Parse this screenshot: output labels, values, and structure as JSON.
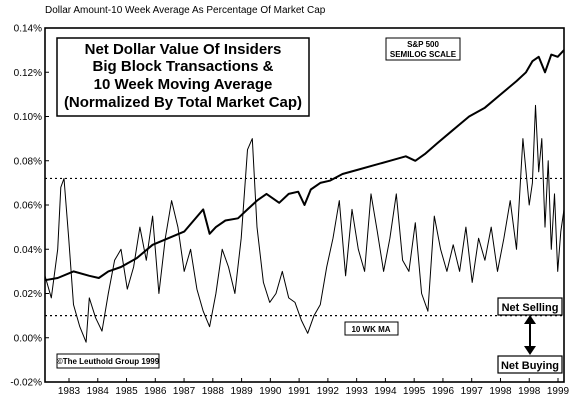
{
  "chart_data": {
    "type": "line",
    "ylabel": "Dollar Amount-10 Week Average As Percentage Of Market Cap",
    "title_lines": [
      "Net Dollar Value Of Insiders",
      "Big Block Transactions &",
      "10 Week Moving Average",
      "(Normalized By Total Market Cap)"
    ],
    "ylim": [
      -0.02,
      0.14
    ],
    "xlim": [
      1982.6,
      1999.0
    ],
    "y_ticks": [
      0.14,
      0.12,
      0.1,
      0.08,
      0.06,
      0.04,
      0.02,
      0.0,
      -0.02
    ],
    "y_tick_labels": [
      "0.14%",
      "0.12%",
      "0.10%",
      "0.08%",
      "0.06%",
      "0.04%",
      "0.02%",
      "0.00%",
      "-0.02%"
    ],
    "x_tick_labels": [
      "1983",
      "1984",
      "1985",
      "1986",
      "1987",
      "1988",
      "1989",
      "1990",
      "1991",
      "1992",
      "1993",
      "1994",
      "1995",
      "1996",
      "1997",
      "1998",
      "1998",
      "1999"
    ],
    "reference_lines": [
      0.072,
      0.01
    ],
    "series": [
      {
        "name": "10 WK MA",
        "x": [
          1982.6,
          1982.8,
          1983.0,
          1983.1,
          1983.2,
          1983.35,
          1983.5,
          1983.7,
          1983.9,
          1984.0,
          1984.2,
          1984.4,
          1984.6,
          1984.8,
          1985.0,
          1985.2,
          1985.4,
          1985.6,
          1985.8,
          1986.0,
          1986.2,
          1986.4,
          1986.6,
          1986.8,
          1987.0,
          1987.2,
          1987.4,
          1987.6,
          1987.8,
          1988.0,
          1988.2,
          1988.4,
          1988.6,
          1988.8,
          1989.0,
          1989.15,
          1989.3,
          1989.5,
          1989.7,
          1989.9,
          1990.1,
          1990.3,
          1990.5,
          1990.7,
          1990.9,
          1991.1,
          1991.3,
          1991.5,
          1991.7,
          1991.9,
          1992.1,
          1992.3,
          1992.5,
          1992.7,
          1992.9,
          1993.1,
          1993.3,
          1993.5,
          1993.7,
          1993.9,
          1994.1,
          1994.3,
          1994.5,
          1994.7,
          1994.9,
          1995.1,
          1995.3,
          1995.5,
          1995.7,
          1995.9,
          1996.1,
          1996.3,
          1996.5,
          1996.7,
          1996.9,
          1997.1,
          1997.3,
          1997.5,
          1997.7,
          1997.9,
          1998.0,
          1998.1,
          1998.2,
          1998.3,
          1998.4,
          1998.5,
          1998.6,
          1998.7,
          1998.8,
          1998.9,
          1999.0
        ],
        "values": [
          0.028,
          0.018,
          0.04,
          0.068,
          0.072,
          0.045,
          0.015,
          0.005,
          -0.002,
          0.018,
          0.009,
          0.003,
          0.02,
          0.035,
          0.04,
          0.022,
          0.032,
          0.05,
          0.035,
          0.055,
          0.02,
          0.045,
          0.062,
          0.05,
          0.03,
          0.04,
          0.022,
          0.012,
          0.005,
          0.02,
          0.04,
          0.032,
          0.02,
          0.045,
          0.085,
          0.09,
          0.05,
          0.025,
          0.016,
          0.02,
          0.03,
          0.018,
          0.016,
          0.008,
          0.002,
          0.01,
          0.015,
          0.032,
          0.045,
          0.062,
          0.028,
          0.058,
          0.04,
          0.03,
          0.065,
          0.048,
          0.03,
          0.045,
          0.065,
          0.035,
          0.03,
          0.052,
          0.02,
          0.012,
          0.055,
          0.04,
          0.03,
          0.042,
          0.03,
          0.05,
          0.025,
          0.045,
          0.035,
          0.05,
          0.03,
          0.045,
          0.062,
          0.04,
          0.09,
          0.06,
          0.07,
          0.105,
          0.075,
          0.09,
          0.05,
          0.08,
          0.04,
          0.065,
          0.03,
          0.048,
          0.058
        ]
      },
      {
        "name": "S&P 500 SEMILOG SCALE",
        "x": [
          1982.6,
          1983.0,
          1983.5,
          1984.0,
          1984.3,
          1984.6,
          1985.0,
          1985.5,
          1986.0,
          1986.5,
          1987.0,
          1987.3,
          1987.6,
          1987.8,
          1988.0,
          1988.3,
          1988.7,
          1989.0,
          1989.3,
          1989.6,
          1990.0,
          1990.3,
          1990.6,
          1990.8,
          1991.0,
          1991.3,
          1991.6,
          1992.0,
          1992.5,
          1993.0,
          1993.5,
          1994.0,
          1994.3,
          1994.6,
          1995.0,
          1995.5,
          1996.0,
          1996.5,
          1997.0,
          1997.5,
          1997.8,
          1998.0,
          1998.2,
          1998.4,
          1998.6,
          1998.8,
          1999.0
        ],
        "values": [
          0.026,
          0.027,
          0.03,
          0.028,
          0.027,
          0.03,
          0.032,
          0.036,
          0.042,
          0.045,
          0.048,
          0.053,
          0.058,
          0.047,
          0.05,
          0.053,
          0.054,
          0.058,
          0.062,
          0.065,
          0.061,
          0.065,
          0.066,
          0.06,
          0.067,
          0.07,
          0.071,
          0.074,
          0.076,
          0.078,
          0.08,
          0.082,
          0.08,
          0.083,
          0.088,
          0.094,
          0.1,
          0.104,
          0.11,
          0.116,
          0.12,
          0.125,
          0.127,
          0.12,
          0.128,
          0.127,
          0.13
        ]
      }
    ]
  },
  "annotations": {
    "sp500_box_line1": "S&P 500",
    "sp500_box_line2": "SEMILOG SCALE",
    "ma_label": "10 WK MA",
    "copyright": "©The Leuthold Group 1999",
    "net_selling": "Net Selling",
    "net_buying": "Net Buying"
  }
}
